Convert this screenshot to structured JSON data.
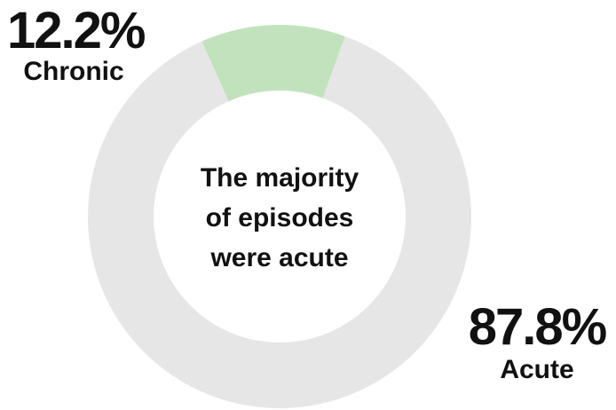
{
  "chart_data": {
    "type": "pie",
    "variant": "donut",
    "slices": [
      {
        "label": "Chronic",
        "value": 12.2,
        "display": "12.2%",
        "color": "#c2e2bd"
      },
      {
        "label": "Acute",
        "value": 87.8,
        "display": "87.8%",
        "color": "#e6e6e7"
      }
    ],
    "center_text": [
      "The majority",
      "of episodes",
      "were acute"
    ]
  }
}
